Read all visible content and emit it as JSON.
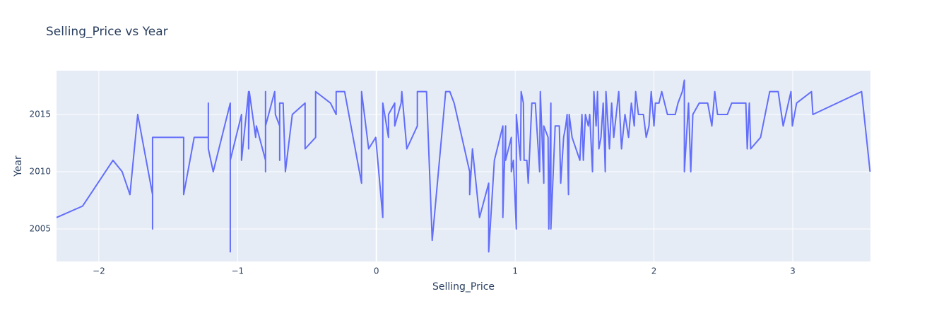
{
  "chart_data": {
    "type": "line",
    "title": "Selling_Price vs Year",
    "x_label": "Selling_Price",
    "y_label": "Year",
    "color": "#636efa",
    "grid": true,
    "x": [
      -2.305,
      -2.117,
      -1.898,
      -1.832,
      -1.776,
      -1.72,
      -1.613,
      -1.613,
      -1.613,
      -1.389,
      -1.389,
      -1.313,
      -1.211,
      -1.211,
      -1.211,
      -1.176,
      -1.053,
      -1.053,
      -1.053,
      -0.972,
      -0.972,
      -0.921,
      -0.921,
      -0.916,
      -0.87,
      -0.865,
      -0.799,
      -0.799,
      -0.799,
      -0.799,
      -0.733,
      -0.728,
      -0.697,
      -0.697,
      -0.697,
      -0.672,
      -0.656,
      -0.606,
      -0.514,
      -0.514,
      -0.438,
      -0.438,
      -0.331,
      -0.29,
      -0.29,
      -0.229,
      -0.107,
      -0.107,
      -0.056,
      -0.005,
      0.046,
      0.046,
      0.087,
      0.087,
      0.132,
      0.132,
      0.178,
      0.183,
      0.219,
      0.295,
      0.295,
      0.361,
      0.402,
      0.499,
      0.529,
      0.56,
      0.672,
      0.672,
      0.692,
      0.743,
      0.809,
      0.809,
      0.85,
      0.911,
      0.911,
      0.931,
      0.931,
      0.972,
      0.972,
      0.987,
      1.008,
      1.008,
      1.038,
      1.043,
      1.059,
      1.064,
      1.084,
      1.094,
      1.12,
      1.145,
      1.176,
      1.181,
      1.206,
      1.206,
      1.237,
      1.242,
      1.257,
      1.257,
      1.288,
      1.318,
      1.328,
      1.349,
      1.364,
      1.374,
      1.384,
      1.389,
      1.41,
      1.466,
      1.481,
      1.491,
      1.506,
      1.527,
      1.537,
      1.557,
      1.567,
      1.583,
      1.593,
      1.603,
      1.618,
      1.634,
      1.649,
      1.654,
      1.679,
      1.695,
      1.71,
      1.746,
      1.766,
      1.791,
      1.817,
      1.837,
      1.858,
      1.868,
      1.888,
      1.924,
      1.944,
      1.964,
      1.98,
      2.0,
      2.01,
      2.036,
      2.056,
      2.097,
      2.153,
      2.173,
      2.204,
      2.219,
      2.219,
      2.249,
      2.265,
      2.28,
      2.326,
      2.387,
      2.417,
      2.438,
      2.458,
      2.529,
      2.56,
      2.662,
      2.672,
      2.687,
      2.697,
      2.768,
      2.834,
      2.895,
      2.931,
      2.987,
      2.997,
      3.028,
      3.135,
      3.145,
      3.496,
      3.557
    ],
    "values": [
      2006,
      2007,
      2011,
      2010,
      2008,
      2015,
      2008,
      2005,
      2013,
      2013,
      2008,
      2013,
      2013,
      2016,
      2012,
      2010,
      2016,
      2003,
      2011,
      2015,
      2011,
      2017,
      2012,
      2017,
      2013,
      2014,
      2011,
      2017,
      2010,
      2014,
      2017,
      2015,
      2014,
      2011,
      2016,
      2016,
      2010,
      2015,
      2016,
      2012,
      2013,
      2017,
      2016,
      2015,
      2017,
      2017,
      2009,
      2017,
      2012,
      2013,
      2006,
      2016,
      2013,
      2015,
      2016,
      2014,
      2016,
      2017,
      2012,
      2014,
      2017,
      2017,
      2004,
      2017,
      2017,
      2016,
      2010,
      2008,
      2012,
      2006,
      2009,
      2003,
      2011,
      2014,
      2006,
      2014,
      2011,
      2013,
      2010,
      2011,
      2005,
      2015,
      2011,
      2017,
      2016,
      2011,
      2011,
      2009,
      2016,
      2016,
      2010,
      2017,
      2009,
      2014,
      2013,
      2005,
      2016,
      2005,
      2014,
      2014,
      2009,
      2013,
      2014,
      2015,
      2008,
      2015,
      2013,
      2011,
      2015,
      2011,
      2015,
      2014,
      2015,
      2010,
      2017,
      2014,
      2017,
      2012,
      2013,
      2016,
      2010,
      2017,
      2012,
      2016,
      2013,
      2017,
      2012,
      2015,
      2013,
      2016,
      2014,
      2017,
      2015,
      2015,
      2013,
      2014,
      2017,
      2014,
      2016,
      2016,
      2017,
      2015,
      2015,
      2016,
      2017,
      2018,
      2010,
      2016,
      2010,
      2015,
      2016,
      2016,
      2014,
      2017,
      2015,
      2015,
      2016,
      2016,
      2012,
      2016,
      2012,
      2013,
      2017,
      2017,
      2014,
      2017,
      2014,
      2016,
      2017,
      2015,
      2017,
      2010
    ],
    "xlim": [
      -2.305,
      3.56
    ],
    "ylim": [
      2002.16,
      2018.83
    ],
    "xticks": [
      {
        "value": -2,
        "label": "−2"
      },
      {
        "value": -1,
        "label": "−1"
      },
      0,
      1,
      2,
      3
    ],
    "yticks": [
      2005,
      2010,
      2015
    ]
  }
}
